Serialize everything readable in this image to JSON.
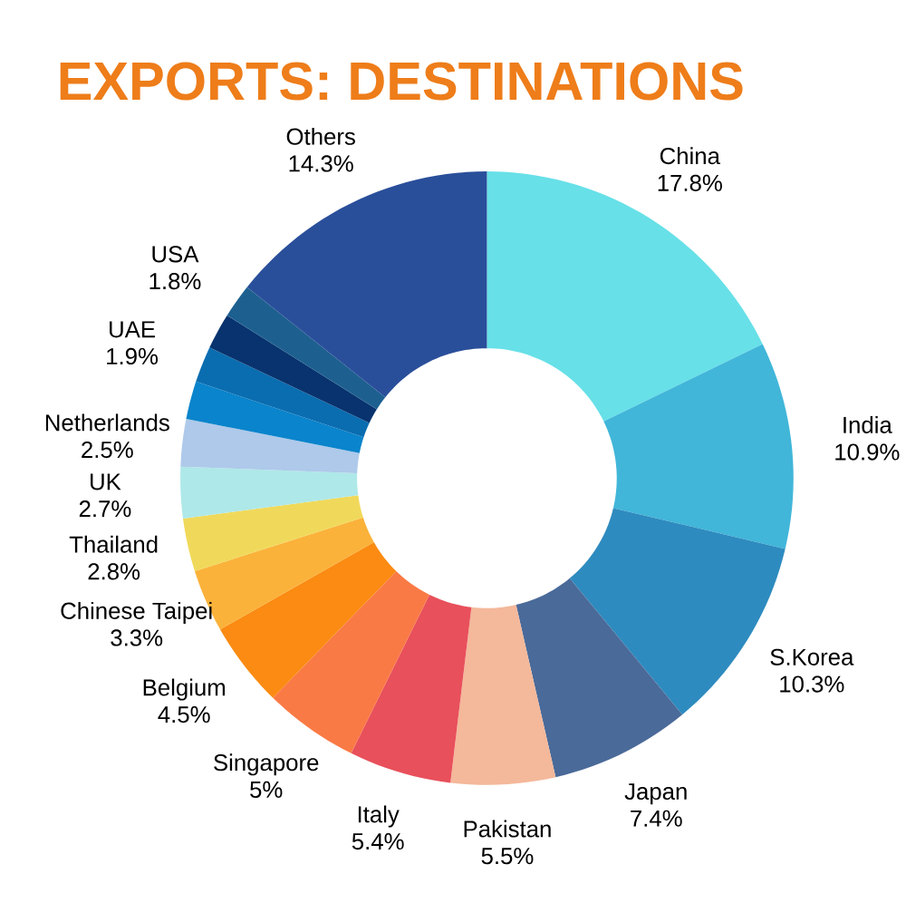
{
  "chart_data": {
    "type": "donut",
    "title": "EXPORTS: DESTINATIONS",
    "categories": [
      "China",
      "India",
      "S.Korea",
      "Japan",
      "Pakistan",
      "Italy",
      "Singapore",
      "Belgium",
      "Chinese Taipei",
      "Thailand",
      "UK",
      "Netherlands",
      null,
      "UAE",
      null,
      "USA",
      "Others"
    ],
    "values": [
      17.8,
      10.9,
      10.3,
      7.4,
      5.5,
      5.4,
      5,
      4.5,
      3.3,
      2.8,
      2.7,
      2.5,
      2.0,
      1.9,
      1.9,
      1.8,
      14.3
    ],
    "value_labels": [
      "17.8%",
      "10.9%",
      "10.3%",
      "7.4%",
      "5.5%",
      "5.4%",
      "5%",
      "4.5%",
      "3.3%",
      "2.8%",
      "2.7%",
      "2.5%",
      null,
      "1.9%",
      null,
      "1.8%",
      "14.3%"
    ],
    "colors": [
      "#67e0e8",
      "#41b6d9",
      "#2e8bbf",
      "#4a6a99",
      "#f4b89a",
      "#e8505b",
      "#fa7a45",
      "#fb8b12",
      "#fbb23a",
      "#f0d95a",
      "#aee8e8",
      "#aec9ea",
      "#0a84cc",
      "#0a6db0",
      "#08336e",
      "#1d6090",
      "#2a4f9a"
    ]
  }
}
